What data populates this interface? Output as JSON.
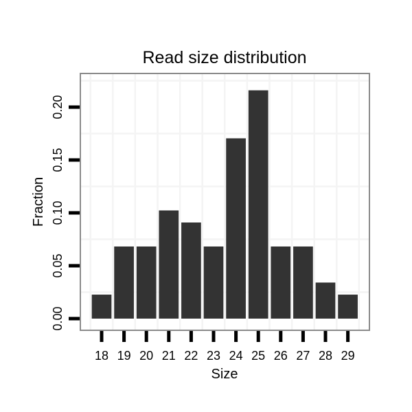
{
  "chart_data": {
    "type": "bar",
    "title": "Read size distribution",
    "xlabel": "Size",
    "ylabel": "Fraction",
    "categories": [
      "18",
      "19",
      "20",
      "21",
      "22",
      "23",
      "24",
      "25",
      "26",
      "27",
      "28",
      "29"
    ],
    "values": [
      0.0227,
      0.0682,
      0.0682,
      0.1023,
      0.0909,
      0.0682,
      0.1705,
      0.2159,
      0.0682,
      0.0682,
      0.0341,
      0.0227
    ],
    "ytick_labels": [
      "0.00",
      "0.05",
      "0.10",
      "0.15",
      "0.20"
    ],
    "ytick_values": [
      0.0,
      0.05,
      0.1,
      0.15,
      0.2
    ],
    "minor_grid_values": [
      0.025,
      0.075,
      0.125,
      0.175,
      0.225
    ],
    "ylim": [
      -0.011,
      0.232
    ],
    "grid": "light minor horizontal lines plus vertical category-separator lines",
    "legend": "none",
    "colors": {
      "bar": "#333333",
      "panel_border": "#8a8a8a",
      "grid": "#f4f4f4",
      "tick": "#000000",
      "text": "#000000",
      "background": "#ffffff"
    }
  }
}
